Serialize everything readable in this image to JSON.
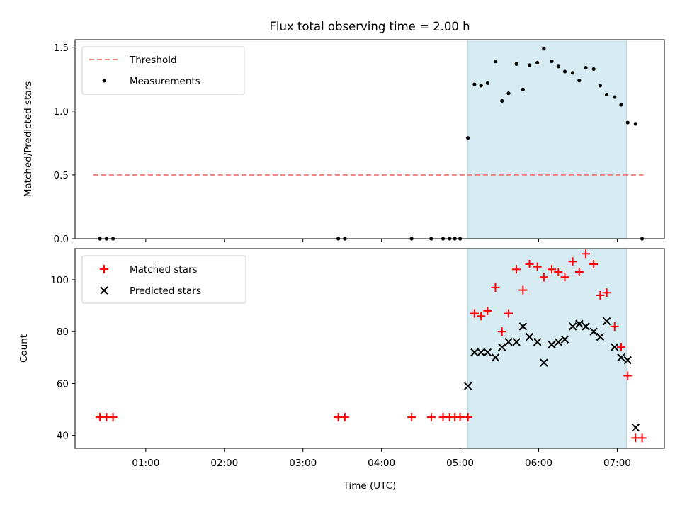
{
  "chart_data": [
    {
      "type": "scatter",
      "title": "Flux total observing time = 2.00 h",
      "xlabel": "",
      "ylabel": "Matched/Predicted stars",
      "ylim": [
        0,
        1.56
      ],
      "yticks": [
        "0.0",
        "0.5",
        "1.0",
        "1.5"
      ],
      "ytick_values": [
        0,
        0.5,
        1.0,
        1.5
      ],
      "xlim_minutes": [
        6,
        456
      ],
      "highlight_span_minutes": [
        306,
        427
      ],
      "colors": {
        "threshold": "#f08080",
        "measurements": "#000000",
        "highlight": "#add8e6"
      },
      "legend_position": "upper left",
      "series": [
        {
          "name": "Threshold",
          "style": "dashed-line",
          "x_minutes": [
            20,
            440
          ],
          "values": [
            0.5,
            0.5
          ]
        },
        {
          "name": "Measurements",
          "style": "dots",
          "x_minutes": [
            25,
            30,
            35,
            207,
            212,
            263,
            278,
            287,
            292,
            296,
            300,
            306,
            311,
            316,
            321,
            327,
            332,
            337,
            343,
            348,
            353,
            359,
            364,
            370,
            375,
            380,
            386,
            391,
            396,
            402,
            407,
            412,
            418,
            423,
            428,
            434
          ],
          "values": [
            0,
            0,
            0,
            0,
            0,
            0,
            0,
            0,
            0,
            0,
            0,
            0.79,
            1.21,
            1.2,
            1.22,
            1.39,
            1.08,
            1.14,
            1.37,
            1.17,
            1.36,
            1.38,
            1.49,
            1.39,
            1.35,
            1.31,
            1.3,
            1.24,
            1.34,
            1.33,
            1.2,
            1.13,
            1.11,
            1.05,
            0.91,
            0.9
          ]
        }
      ]
    },
    {
      "type": "scatter",
      "title": "",
      "xlabel": "Time (UTC)",
      "ylabel": "Count",
      "ylim": [
        35,
        112
      ],
      "yticks": [
        "40",
        "60",
        "80",
        "100"
      ],
      "ytick_values": [
        40,
        60,
        80,
        100
      ],
      "xlim_minutes": [
        6,
        456
      ],
      "xticks": [
        "01:00",
        "02:00",
        "03:00",
        "04:00",
        "05:00",
        "06:00",
        "07:00"
      ],
      "xtick_minutes": [
        60,
        120,
        180,
        240,
        300,
        360,
        420
      ],
      "highlight_span_minutes": [
        306,
        427
      ],
      "colors": {
        "matched": "#ff0000",
        "predicted": "#000000",
        "highlight": "#add8e6"
      },
      "legend_position": "upper left",
      "series": [
        {
          "name": "Matched stars",
          "style": "plus",
          "x_minutes": [
            25,
            30,
            35,
            207,
            212,
            263,
            278,
            287,
            292,
            296,
            300,
            306,
            311,
            316,
            321,
            327,
            332,
            337,
            343,
            348,
            353,
            359,
            364,
            370,
            375,
            380,
            386,
            391,
            396,
            402,
            407,
            412,
            418,
            423,
            428,
            434
          ],
          "values": [
            47,
            47,
            47,
            47,
            47,
            47,
            47,
            47,
            47,
            47,
            47,
            47,
            87,
            86,
            88,
            97,
            80,
            87,
            104,
            96,
            106,
            105,
            101,
            104,
            103,
            101,
            107,
            103,
            110,
            106,
            94,
            95,
            82,
            74,
            63,
            39
          ]
        },
        {
          "name": "Predicted stars",
          "style": "x",
          "x_minutes": [
            306,
            311,
            316,
            321,
            327,
            332,
            337,
            343,
            348,
            353,
            359,
            364,
            370,
            375,
            380,
            386,
            391,
            396,
            402,
            407,
            412,
            418,
            423,
            428,
            434
          ],
          "values": [
            59,
            72,
            72,
            72,
            70,
            74,
            76,
            76,
            82,
            78,
            76,
            68,
            75,
            76,
            77,
            82,
            83,
            82,
            80,
            78,
            84,
            74,
            70,
            69,
            43
          ]
        },
        {
          "name": "",
          "style": "plus",
          "x_minutes": [
            439
          ],
          "values": [
            39
          ]
        }
      ]
    }
  ]
}
